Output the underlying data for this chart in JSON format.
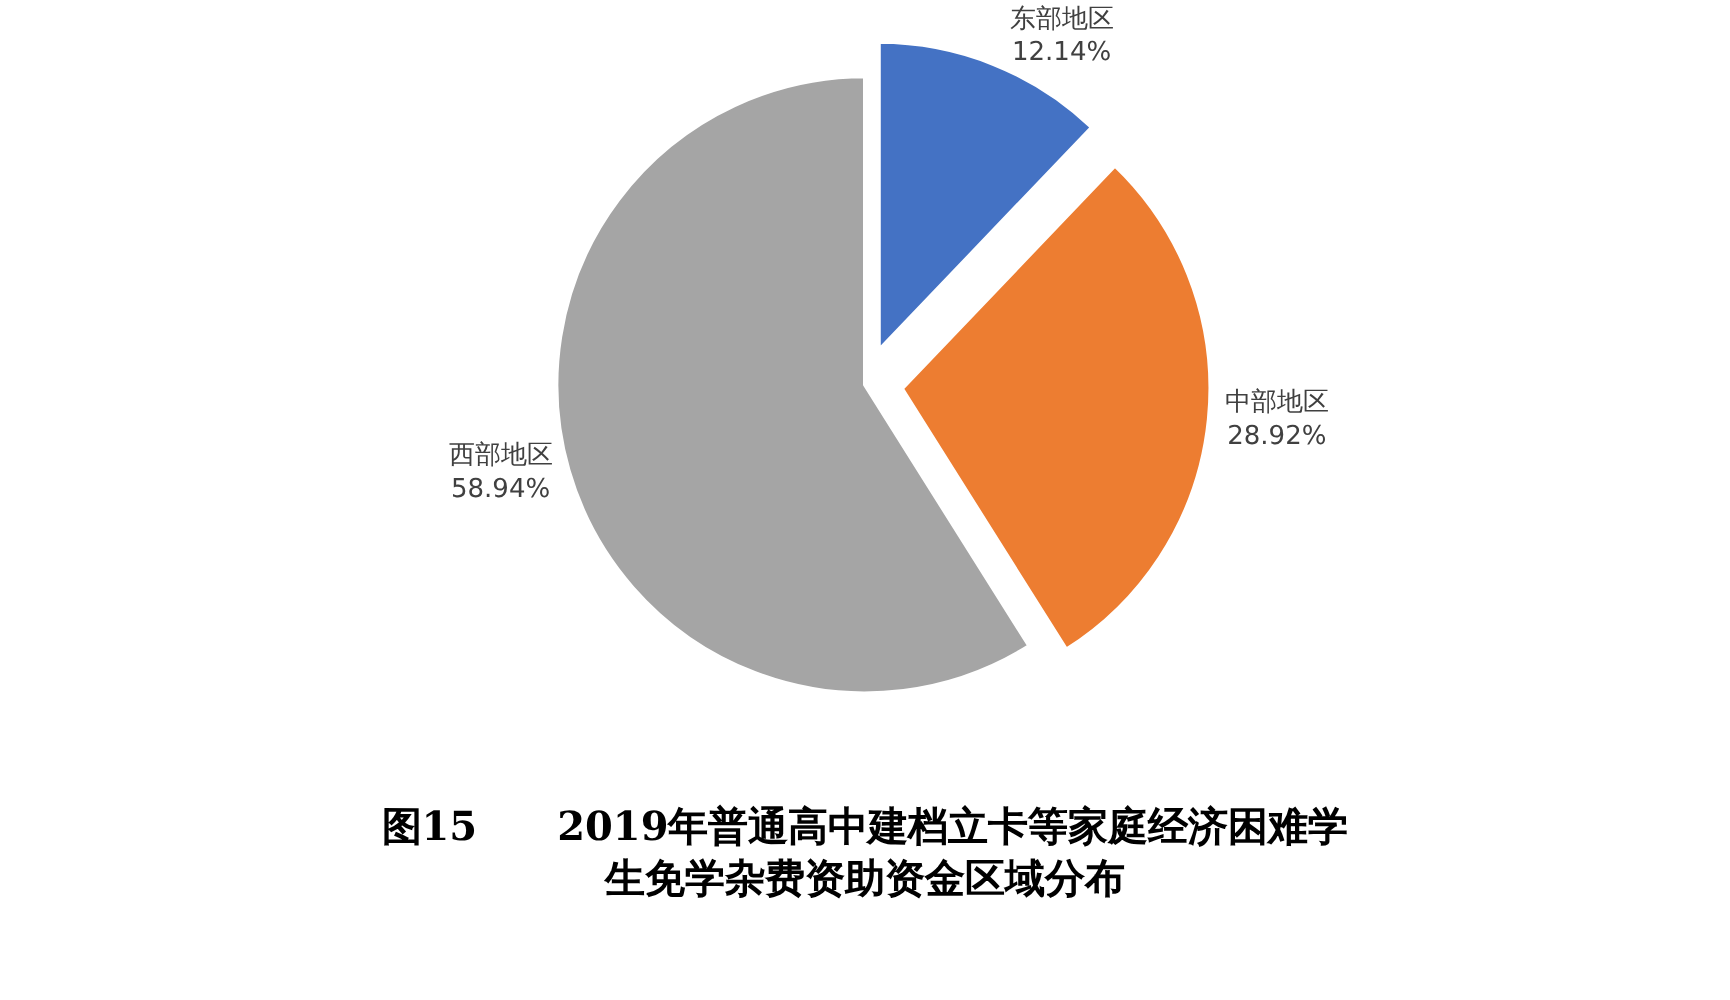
{
  "chart_data": {
    "type": "pie",
    "title": "图15　　2019年普通高中建档立卡等家庭经济困难学生免学杂费资助资金区域分布",
    "categories": [
      "东部地区",
      "中部地区",
      "西部地区"
    ],
    "values": [
      12.14,
      28.92,
      58.94
    ],
    "value_labels": [
      "12.14%",
      "28.92%",
      "58.94%"
    ],
    "colors": [
      "#4472c4",
      "#ed7d31",
      "#a5a5a5"
    ],
    "legend": false
  }
}
